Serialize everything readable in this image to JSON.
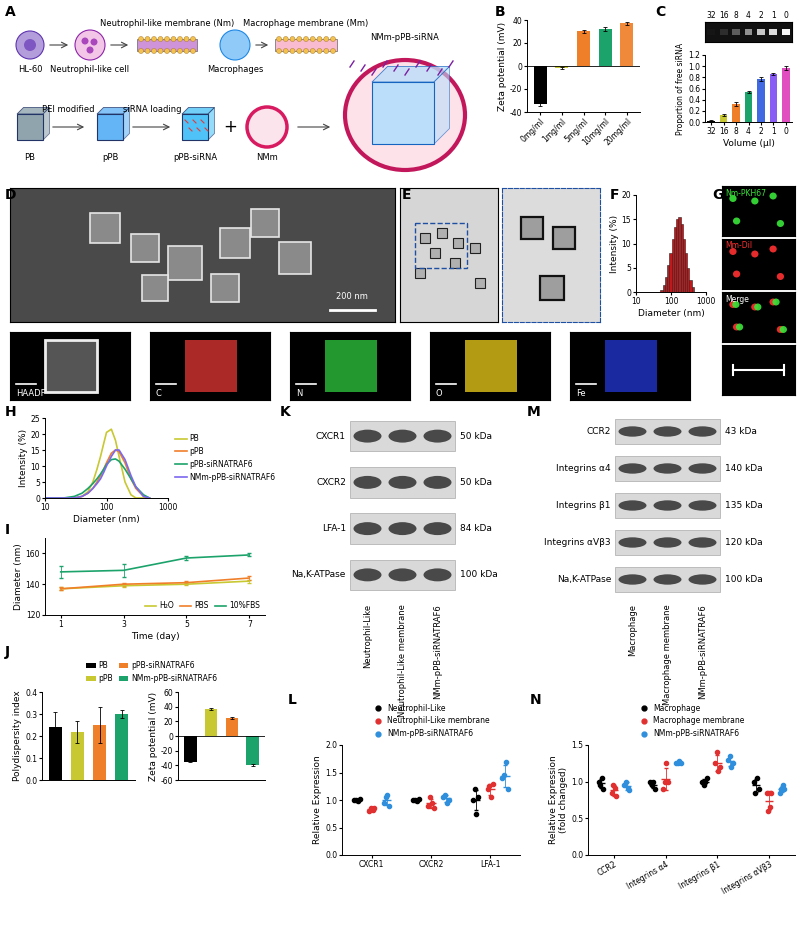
{
  "schematic": {
    "panel": "A",
    "labels": {
      "hl60": "HL-60",
      "ncell": "Neutrophil-like cell",
      "nm": "Neutrophil-like membrane (Nm)",
      "mac": "Macrophages",
      "mm": "Macrophage membrane (Mm)",
      "pb": "PB",
      "pei": "PEI modified",
      "ppb": "pPB",
      "loading": "siRNA loading",
      "ppbsi": "pPB-siRNA",
      "plus": "+",
      "nmm": "NMm",
      "product": "NMm-pPB-siRNA"
    }
  },
  "sem": {
    "panel": "D",
    "scale_bar": "200 nm"
  },
  "tem": {
    "panel": "E"
  },
  "eds": {
    "labels": [
      "HAADF",
      "C",
      "N",
      "O",
      "Fe"
    ]
  },
  "fluorescence": {
    "panel": "G",
    "labels": [
      "Nm-PKH67",
      "Mm-DiI",
      "Merge"
    ]
  },
  "blots": [
    {
      "panel": "K",
      "rows": [
        {
          "name": "CXCR1",
          "size": "50 kDa"
        },
        {
          "name": "CXCR2",
          "size": "50 kDa"
        },
        {
          "name": "LFA-1",
          "size": "84 kDa"
        },
        {
          "name": "Na,K-ATPase",
          "size": "100 kDa"
        }
      ],
      "columns": [
        "Neutrophil-Like",
        "Neutrophil-Like membrane",
        "NMm-pPB-siRNATRAF6"
      ]
    },
    {
      "panel": "M",
      "rows": [
        {
          "name": "CCR2",
          "size": "43 kDa"
        },
        {
          "name": "Integrins α4",
          "size": "140 kDa"
        },
        {
          "name": "Integrins β1",
          "size": "135 kDa"
        },
        {
          "name": "Integrins αVβ3",
          "size": "120 kDa"
        },
        {
          "name": "Na,K-ATPase",
          "size": "100 kDa"
        }
      ],
      "columns": [
        "Macrophage",
        "Macrophage membrane",
        "NMm-pPB-siRNATRAF6"
      ]
    }
  ],
  "chart_data": [
    {
      "panel": "B",
      "type": "bar",
      "categories": [
        "0mg/ml",
        "1mg/ml",
        "5mg/ml",
        "10mg/ml",
        "20mg/ml"
      ],
      "values": [
        -33,
        -2,
        30,
        32,
        37
      ],
      "errors": [
        1.5,
        0.8,
        1.2,
        1.5,
        1.5
      ],
      "colors": [
        "#000000",
        "#c8c832",
        "#f07f2a",
        "#1ca36b",
        "#f08a3a"
      ],
      "ylabel": "Zeta potential (mV)",
      "ylim": [
        -40,
        40
      ],
      "yticks": [
        -40,
        -20,
        0,
        20,
        40
      ]
    },
    {
      "panel": "C",
      "type": "bar",
      "categories": [
        "32",
        "16",
        "8",
        "4",
        "2",
        "1",
        "0"
      ],
      "values": [
        0.02,
        0.12,
        0.32,
        0.54,
        0.77,
        0.86,
        0.97
      ],
      "errors": [
        0.02,
        0.02,
        0.04,
        0.02,
        0.04,
        0.02,
        0.03
      ],
      "colors": [
        "#000000",
        "#c8c832",
        "#f07f2a",
        "#1ca36b",
        "#4169e1",
        "#8a5cf6",
        "#e04ec0"
      ],
      "xlabel": "Volume (μl)",
      "ylabel": "Proportion of free siRNA",
      "ylim": [
        0,
        1.2
      ],
      "yticks": [
        {
          "value": 0,
          "label": "0.0"
        },
        0.2,
        0.4,
        0.6,
        0.8,
        {
          "value": 1,
          "label": "1.0"
        },
        1.2
      ]
    },
    {
      "panel": "F",
      "type": "histogram",
      "bins": [
        50,
        58,
        67,
        78,
        90,
        104,
        120,
        139,
        161,
        187,
        216,
        250,
        290,
        336,
        389,
        450
      ],
      "counts": [
        0.5,
        1.5,
        3,
        5.5,
        8,
        11,
        13.5,
        15,
        15.5,
        14,
        11,
        8,
        5,
        2.5,
        1
      ],
      "color": "#c0191b",
      "xlabel": "Diameter (nm)",
      "ylabel": "Intensity (%)",
      "log": "x",
      "xlim": [
        10,
        1000
      ],
      "xticks": [
        10,
        100,
        1000
      ],
      "ylim": [
        0,
        20
      ],
      "yticks": [
        0,
        5,
        10,
        15,
        20
      ]
    },
    {
      "panel": "H",
      "type": "line",
      "x": [
        10,
        20,
        30,
        40,
        50,
        60,
        70,
        80,
        90,
        100,
        120,
        140,
        160,
        200,
        250,
        300,
        400,
        500
      ],
      "series": [
        {
          "name": "PB",
          "color": "#c8c832",
          "values": [
            0,
            0,
            0,
            0.5,
            2,
            5,
            9,
            13,
            17,
            20.5,
            21.5,
            18,
            13,
            5,
            1,
            0,
            0,
            0
          ]
        },
        {
          "name": "pPB",
          "color": "#f07f2a",
          "values": [
            0,
            0,
            0,
            0.5,
            1.5,
            3,
            5,
            7,
            9,
            11,
            14,
            15,
            14.5,
            11,
            6,
            3,
            0.5,
            0
          ]
        },
        {
          "name": "pPB-siRNATRAF6",
          "color": "#1ca36b",
          "values": [
            0,
            0,
            0.5,
            1.5,
            3,
            4.5,
            6,
            7.5,
            9,
            10.5,
            12,
            12.2,
            11.5,
            9,
            6,
            3.5,
            1,
            0
          ]
        },
        {
          "name": "NMm-pPB-siRNATRAF6",
          "color": "#7b68ee",
          "values": [
            0,
            0,
            0,
            0.5,
            1.5,
            3,
            4.5,
            6,
            8,
            10,
            13,
            15,
            15,
            12,
            7,
            3.5,
            0.5,
            0
          ]
        }
      ],
      "xlabel": "Diameter (nm)",
      "ylabel": "Intensity (%)",
      "log": "x",
      "xlim": [
        10,
        1000
      ],
      "xticks": [
        10,
        100,
        1000
      ],
      "ylim": [
        0,
        25
      ],
      "yticks": [
        0,
        5,
        10,
        15,
        20,
        25
      ],
      "legend": "right"
    },
    {
      "panel": "I",
      "type": "line",
      "x": [
        1,
        3,
        5,
        7
      ],
      "series": [
        {
          "name": "H₂O",
          "color": "#c8c832",
          "values": [
            137,
            139,
            140,
            142
          ],
          "errors": [
            1,
            1,
            0.5,
            1
          ]
        },
        {
          "name": "PBS",
          "color": "#f07f2a",
          "values": [
            137,
            140,
            141,
            144
          ],
          "errors": [
            1,
            1,
            1,
            1.5
          ]
        },
        {
          "name": "10%FBS",
          "color": "#1ca36b",
          "values": [
            148,
            149,
            157,
            159
          ],
          "errors": [
            4,
            4,
            1,
            1
          ]
        }
      ],
      "xlabel": "Time (day)",
      "ylabel": "Diameter (nm)",
      "xlim": [
        0.5,
        7.5
      ],
      "xticks": [
        1,
        3,
        5,
        7
      ],
      "ylim": [
        120,
        170
      ],
      "yticks": [
        120,
        140,
        160
      ],
      "legend": "lower right"
    },
    {
      "panel": "J",
      "type": "bar",
      "categories": [
        "PB",
        "pPB",
        "pPB-siRNATRAF6",
        "NMm-pPB-siRNATRAF6"
      ],
      "values": [
        0.24,
        0.22,
        0.25,
        0.3
      ],
      "errors": [
        0.07,
        0.05,
        0.08,
        0.02
      ],
      "colors": [
        "#000000",
        "#c8c832",
        "#f07f2a",
        "#1ca36b"
      ],
      "ylabel": "Polydispersity index",
      "ylim": [
        0,
        0.4
      ],
      "yticks": [
        {
          "value": 0,
          "label": "0.0"
        },
        0.1,
        0.2,
        0.3,
        0.4
      ],
      "tick_labels": "y",
      "legend": "top"
    },
    {
      "type": "bar",
      "categories": [
        "PB",
        "pPB",
        "pPB-siRNATRAF6",
        "NMm-pPB-siRNATRAF6"
      ],
      "values": [
        -35,
        37,
        25,
        -40
      ],
      "errors": [
        1,
        1.5,
        1.5,
        1.5
      ],
      "colors": [
        "#000000",
        "#c8c832",
        "#f07f2a",
        "#1ca36b"
      ],
      "ylabel": "Zeta potential (mV)",
      "ylim": [
        -60,
        60
      ],
      "yticks": [
        -60,
        -40,
        -20,
        0,
        20,
        40,
        60
      ],
      "tick_labels": "y"
    },
    {
      "panel": "L",
      "type": "dot",
      "categories": [
        "CXCR1",
        "CXCR2",
        "LFA-1"
      ],
      "series": [
        {
          "name": "Neutrophil-Like",
          "color": "#000000",
          "values": [
            [
              1.0,
              1.0,
              0.98,
              1.02
            ],
            [
              1.0,
              1.0,
              0.98,
              1.02
            ],
            [
              1.0,
              1.2,
              0.75,
              1.05
            ]
          ],
          "means": [
            1.0,
            1.0,
            1.0
          ],
          "errors": [
            0.02,
            0.02,
            0.19
          ]
        },
        {
          "name": "Neutrophil-Like membrane",
          "color": "#e03030",
          "values": [
            [
              0.8,
              0.85,
              0.82,
              0.86
            ],
            [
              0.9,
              1.05,
              0.95,
              0.85
            ],
            [
              1.2,
              1.25,
              1.05,
              1.3
            ]
          ],
          "means": [
            0.83,
            0.94,
            1.2
          ],
          "errors": [
            0.03,
            0.08,
            0.1
          ]
        },
        {
          "name": "NMm-pPB-siRNATRAF6",
          "color": "#2f8fdc",
          "values": [
            [
              0.95,
              1.05,
              1.1,
              0.9
            ],
            [
              1.05,
              1.1,
              0.95,
              1.0
            ],
            [
              1.4,
              1.45,
              1.7,
              1.2
            ]
          ],
          "means": [
            1.0,
            1.03,
            1.44
          ],
          "errors": [
            0.09,
            0.06,
            0.2
          ]
        }
      ],
      "ylabel": "Relative Expression",
      "ylim": [
        0,
        2.0
      ],
      "yticks": [
        {
          "value": 0,
          "label": "0.0"
        },
        0.5,
        {
          "value": 1,
          "label": "1.0"
        },
        1.5,
        {
          "value": 2,
          "label": "2.0"
        }
      ],
      "legend": "top"
    },
    {
      "panel": "N",
      "type": "dot",
      "categories": [
        "CCR2",
        "Integrins α4",
        "Integrins β1",
        "Integrins αVβ3"
      ],
      "series": [
        {
          "name": "Macrophage",
          "color": "#000000",
          "values": [
            [
              1.0,
              0.95,
              1.05,
              0.9
            ],
            [
              1.0,
              0.95,
              1.0,
              0.9
            ],
            [
              1.0,
              0.95,
              1.0,
              1.05
            ],
            [
              1.0,
              0.85,
              1.05,
              0.9
            ]
          ],
          "means": [
            0.98,
            0.96,
            1.0,
            0.95
          ],
          "errors": [
            0.06,
            0.05,
            0.04,
            0.09
          ]
        },
        {
          "name": "Macrophage membrane",
          "color": "#e03030",
          "values": [
            [
              0.85,
              0.95,
              0.92,
              0.8
            ],
            [
              0.9,
              1.0,
              1.25,
              1.0
            ],
            [
              1.25,
              1.4,
              1.15,
              1.2
            ],
            [
              0.85,
              0.6,
              0.65,
              0.85
            ]
          ],
          "means": [
            0.88,
            1.04,
            1.25,
            0.74
          ],
          "errors": [
            0.07,
            0.15,
            0.11,
            0.13
          ]
        },
        {
          "name": "NMm-pPB-siRNATRAF6",
          "color": "#2f8fdc",
          "values": [
            [
              0.95,
              1.0,
              0.92,
              0.88
            ],
            [
              1.25,
              1.25,
              1.28,
              1.25
            ],
            [
              1.3,
              1.35,
              1.2,
              1.25
            ],
            [
              0.85,
              0.9,
              0.95,
              0.9
            ]
          ],
          "means": [
            0.94,
            1.26,
            1.28,
            0.9
          ],
          "errors": [
            0.05,
            0.02,
            0.07,
            0.04
          ]
        }
      ],
      "ylabel": "Relative Expression\n(fold changed)",
      "ylim": [
        0,
        1.5
      ],
      "yticks": [
        {
          "value": 0,
          "label": "0.0"
        },
        0.5,
        {
          "value": 1,
          "label": "1.0"
        },
        1.5
      ],
      "legend": "top"
    }
  ]
}
